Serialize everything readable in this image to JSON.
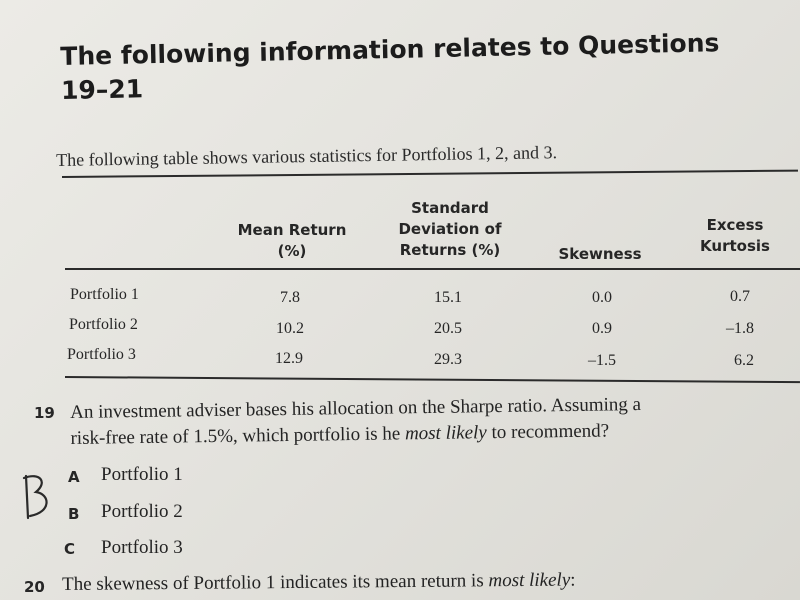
{
  "heading": {
    "line1": "The following information relates to Questions",
    "line2": "19–21"
  },
  "intro": "The following table shows various statistics for Portfolios 1, 2, and 3.",
  "table": {
    "headers": {
      "mean_return": [
        "Mean Return",
        "(%)"
      ],
      "std_dev": [
        "Standard",
        "Deviation of",
        "Returns (%)"
      ],
      "skewness": "Skewness",
      "excess_kurtosis": [
        "Excess",
        "Kurtosis"
      ]
    },
    "rows": [
      {
        "name": "Portfolio 1",
        "mean": "7.8",
        "std": "15.1",
        "skew": "0.0",
        "kurt": "0.7"
      },
      {
        "name": "Portfolio 2",
        "mean": "10.2",
        "std": "20.5",
        "skew": "0.9",
        "kurt": "–1.8"
      },
      {
        "name": "Portfolio 3",
        "mean": "12.9",
        "std": "29.3",
        "skew": "–1.5",
        "kurt": "6.2"
      }
    ]
  },
  "q19": {
    "number": "19",
    "line1": "An investment adviser bases his allocation on the Sharpe ratio. Assuming a",
    "line2_pre": "risk-free rate of 1.5%, which portfolio is he ",
    "line2_em": "most likely",
    "line2_post": " to recommend?",
    "options": [
      {
        "letter": "A",
        "text": "Portfolio 1"
      },
      {
        "letter": "B",
        "text": "Portfolio 2"
      },
      {
        "letter": "C",
        "text": "Portfolio 3"
      }
    ],
    "handwritten_answer": "B"
  },
  "q20": {
    "number": "20",
    "text_pre": "The skewness of Portfolio 1 indicates its mean return is ",
    "text_em": "most likely",
    "text_post": ":"
  }
}
